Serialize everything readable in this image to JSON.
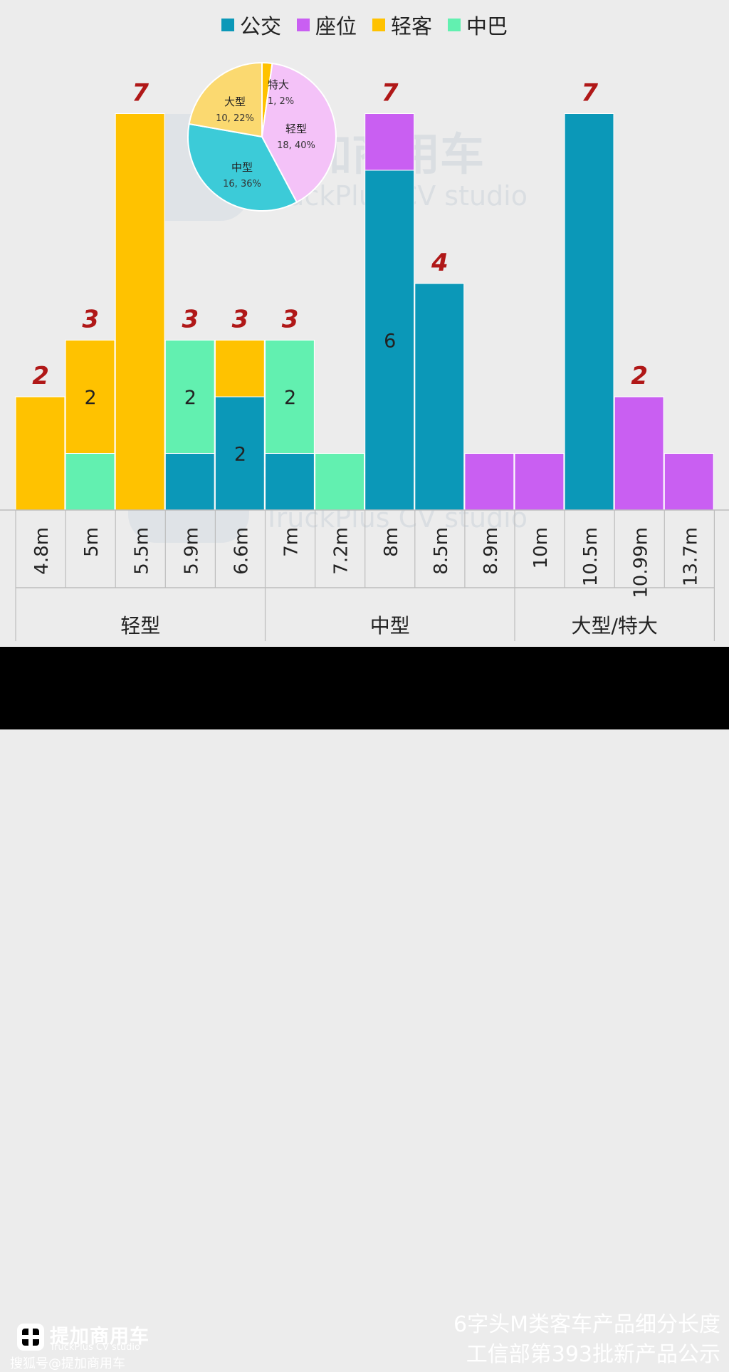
{
  "chart_data": [
    {
      "type": "bar",
      "stacked": true,
      "categories": [
        "4.8m",
        "5m",
        "5.5m",
        "5.9m",
        "6.6m",
        "7m",
        "7.2m",
        "8m",
        "8.5m",
        "8.9m",
        "10m",
        "10.5m",
        "10.99m",
        "13.7m"
      ],
      "groups": [
        {
          "label": "轻型",
          "categories": [
            "4.8m",
            "5m",
            "5.5m",
            "5.9m",
            "6.6m"
          ]
        },
        {
          "label": "中型",
          "categories": [
            "7m",
            "7.2m",
            "8m",
            "8.5m",
            "8.9m"
          ]
        },
        {
          "label": "大型/特大",
          "categories": [
            "10m",
            "10.5m",
            "10.99m",
            "13.7m"
          ]
        }
      ],
      "series": [
        {
          "name": "公交",
          "color": "#0b98b8",
          "values": [
            0,
            0,
            0,
            1,
            2,
            1,
            0,
            6,
            4,
            0,
            0,
            7,
            0,
            0
          ]
        },
        {
          "name": "座位",
          "color": "#c95ff2",
          "values": [
            0,
            0,
            0,
            0,
            0,
            0,
            0,
            1,
            0,
            1,
            1,
            0,
            2,
            1
          ]
        },
        {
          "name": "轻客",
          "color": "#ffc200",
          "values": [
            2,
            2,
            7,
            0,
            1,
            0,
            0,
            0,
            0,
            0,
            0,
            0,
            0,
            0
          ]
        },
        {
          "name": "中巴",
          "color": "#62f0b0",
          "values": [
            0,
            1,
            0,
            2,
            0,
            2,
            1,
            0,
            0,
            0,
            0,
            0,
            0,
            0
          ]
        }
      ],
      "totals": [
        2,
        3,
        7,
        3,
        3,
        3,
        1,
        7,
        4,
        1,
        1,
        7,
        2,
        1
      ],
      "total_labels": [
        "2",
        "3",
        "7",
        "3",
        "3",
        "3",
        "",
        "7",
        "4",
        "",
        "",
        "7",
        "2",
        ""
      ],
      "segment_labels": [
        {
          "category": "5m",
          "series": "轻客",
          "text": "2"
        },
        {
          "category": "5.9m",
          "series": "中巴",
          "text": "2"
        },
        {
          "category": "6.6m",
          "series": "公交",
          "text": "2"
        },
        {
          "category": "7m",
          "series": "中巴",
          "text": "2"
        },
        {
          "category": "8m",
          "series": "公交",
          "text": "6"
        }
      ],
      "ylim": [
        0,
        7
      ],
      "grid": false,
      "legend_position": "top-center"
    },
    {
      "type": "pie",
      "labels": [
        "特大",
        "轻型",
        "中型",
        "大型"
      ],
      "values": [
        1,
        18,
        16,
        10
      ],
      "percents": [
        2,
        40,
        36,
        22
      ],
      "slice_labels": [
        "1, 2%",
        "18, 40%",
        "16, 36%",
        "10, 22%"
      ],
      "colors": [
        "#ffc200",
        "#f4c2f8",
        "#3ccbd8",
        "#fbd970"
      ]
    }
  ],
  "watermark": {
    "name": "提加商用车",
    "sub": "TruckPlus CV studio"
  },
  "footer": {
    "brand_name": "提加商用车",
    "brand_sub": "TruckPlus CV studio",
    "source": "搜狐号@提加商用车",
    "title_line1": "6字头M类客车产品细分长度",
    "title_line2": "工信部第393批新产品公示"
  }
}
